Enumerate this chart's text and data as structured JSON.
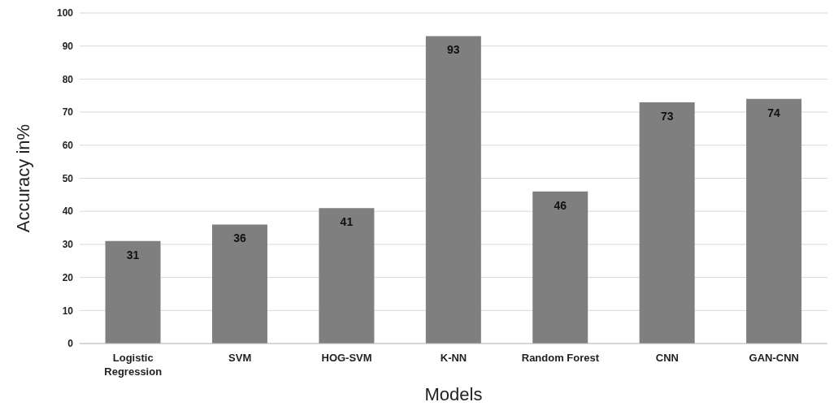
{
  "chart_data": {
    "type": "bar",
    "xlabel": "Models",
    "ylabel": "Accuracy in%",
    "categories": [
      "Logistic Regression",
      "SVM",
      "HOG-SVM",
      "K-NN",
      "Random Forest",
      "CNN",
      "GAN-CNN"
    ],
    "values": [
      31,
      36,
      41,
      93,
      46,
      73,
      74
    ],
    "color": "#7f7f7f",
    "ylim": [
      0,
      100
    ],
    "yticks": [
      0,
      10,
      20,
      30,
      40,
      50,
      60,
      70,
      80,
      90,
      100
    ],
    "grid": "y",
    "data_labels": true
  }
}
